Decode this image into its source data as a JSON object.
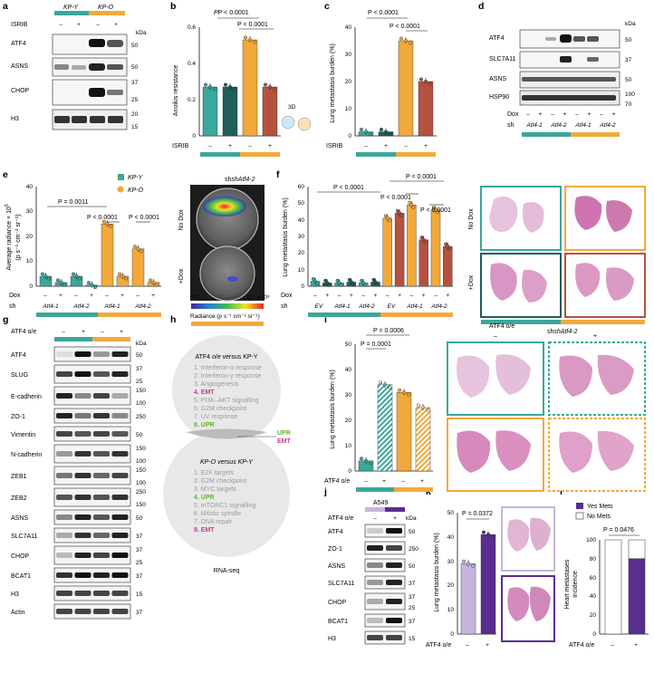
{
  "colors": {
    "teal": "#3aa89b",
    "teal_dark": "#1f5e5a",
    "orange": "#f2a93b",
    "red": "#b5513f",
    "purple": "#5a2d91",
    "lilac": "#c7b4de",
    "tissue": "#c85aa4"
  },
  "panel_labels": [
    "a",
    "b",
    "c",
    "d",
    "e",
    "f",
    "g",
    "h",
    "i",
    "j",
    "k",
    "l"
  ],
  "a": {
    "groups": [
      "KP-Y",
      "KP-O"
    ],
    "treatment": "ISRIB",
    "signs": [
      "–",
      "+",
      "–",
      "+"
    ],
    "kda": "kDa",
    "blots": [
      {
        "name": "ATF4",
        "markers": [
          "50"
        ]
      },
      {
        "name": "ASNS",
        "markers": [
          "50"
        ]
      },
      {
        "name": "CHOP",
        "markers": [
          "37",
          "25"
        ]
      },
      {
        "name": "H3",
        "markers": [
          "20",
          "15"
        ]
      }
    ]
  },
  "b": {
    "ylabel": "Anoikis resistance",
    "yticks": [
      "0",
      "0.2",
      "0.4",
      "0.6"
    ],
    "xrow_label": "ISRIB",
    "signs": [
      "–",
      "+",
      "–",
      "+"
    ],
    "p1": "P < 0.0001",
    "p2": "P < 0.0001",
    "inset": "3D",
    "chart_data": {
      "type": "bar",
      "values": [
        0.27,
        0.27,
        0.53,
        0.27
      ],
      "ylim": [
        0,
        0.6
      ]
    }
  },
  "c": {
    "ylabel": "Lung metastasis burden (%)",
    "yticks": [
      "0",
      "10",
      "20",
      "30",
      "40"
    ],
    "xrow_label": "ISRIB",
    "signs": [
      "–",
      "+",
      "–",
      "+"
    ],
    "p1": "P < 0.0001",
    "p2": "P < 0.0001",
    "chart_data": {
      "type": "bar",
      "values": [
        1.5,
        1.5,
        35,
        20
      ],
      "ylim": [
        0,
        40
      ]
    }
  },
  "d": {
    "kda": "kDa",
    "blots": [
      {
        "name": "ATF4",
        "markers": [
          "50"
        ]
      },
      {
        "name": "SLC7A11",
        "markers": [
          "37"
        ]
      },
      {
        "name": "ASNS",
        "markers": [
          "50"
        ]
      },
      {
        "name": "HSP90",
        "markers": [
          "100",
          "70"
        ]
      }
    ],
    "dox_label": "Dox",
    "signs": [
      "–",
      "+",
      "–",
      "+",
      "–",
      "+",
      "–",
      "+"
    ],
    "sh_label": "sh",
    "sh_items": [
      "Atf4-1",
      "Atf4-2",
      "Atf4-1",
      "Atf4-2"
    ]
  },
  "e": {
    "legend": [
      "KP-Y",
      "KP-O"
    ],
    "ylabel_line1": "Average radiance × 10",
    "ylabel_exp": "5",
    "ylabel_line2": "(p s⁻¹ cm⁻² sr⁻¹)",
    "yticks": [
      "0",
      "10",
      "20",
      "30",
      "40"
    ],
    "p1": "P = 0.0011",
    "p2": "P < 0.0001",
    "p3": "P < 0.0001",
    "dox_label": "Dox",
    "signs": [
      "–",
      "+",
      "–",
      "+",
      "–",
      "+",
      "–",
      "+"
    ],
    "sh_label": "sh",
    "sh_items": [
      "Atf4-1",
      "Atf4-2",
      "Atf4-1",
      "Atf4-2"
    ],
    "chart_data": {
      "type": "bar",
      "values": [
        4,
        1.5,
        4,
        0.5,
        25,
        4,
        15,
        1.5
      ],
      "ylim": [
        0,
        40
      ]
    },
    "image_title": "shAtf4-2",
    "no_dox": "No Dox",
    "plus_dox": "+Dox",
    "scale_min": "0.2",
    "scale_max": "1.0",
    "scale_exp": "×10⁸",
    "scale_label": "Radiance (p s⁻¹ cm⁻² sr⁻¹)"
  },
  "f": {
    "ylabel": "Lung metastasis burden (%)",
    "yticks": [
      "0",
      "10",
      "20",
      "30",
      "40",
      "50",
      "60"
    ],
    "p1": "P < 0.0001",
    "p2": "P < 0.0001",
    "p3": "P < 0.0001",
    "p4": "P < 0.0001",
    "dox_label": "Dox",
    "signs": [
      "–",
      "+",
      "–",
      "+",
      "–",
      "+",
      "–",
      "+",
      "–",
      "+",
      "–",
      "+"
    ],
    "sh_label": "sh",
    "sh_items": [
      "EV",
      "Atf4-1",
      "Atf4-2",
      "EV",
      "Atf4-1",
      "Atf4-2"
    ],
    "chart_data": {
      "type": "bar",
      "values": [
        3,
        2,
        2,
        2.5,
        2,
        2.5,
        41,
        44,
        49,
        28,
        46,
        24
      ],
      "ylim": [
        0,
        60
      ]
    },
    "no_dox": "No Dox",
    "plus_dox": "+Dox",
    "bottom_label": "shAtf4-2"
  },
  "g": {
    "o_e": "ATF4 o/e",
    "signs": [
      "–",
      "+",
      "–",
      "+"
    ],
    "kda": "kDa",
    "blots": [
      {
        "name": "ATF4",
        "markers": [
          "50"
        ]
      },
      {
        "name": "SLUG",
        "markers": [
          "37",
          "25"
        ]
      },
      {
        "name": "E-cadherin",
        "markers": [
          "150",
          "100"
        ]
      },
      {
        "name": "ZO-1",
        "markers": [
          "250"
        ]
      },
      {
        "name": "Vimentin",
        "markers": [
          "50"
        ]
      },
      {
        "name": "N-cadherin",
        "markers": [
          "150",
          "100"
        ]
      },
      {
        "name": "ZEB1",
        "markers": [
          "150",
          "100"
        ]
      },
      {
        "name": "ZEB2",
        "markers": [
          "250",
          "150"
        ]
      },
      {
        "name": "ASNS",
        "markers": [
          "50"
        ]
      },
      {
        "name": "SLC7A11",
        "markers": [
          "37"
        ]
      },
      {
        "name": "CHOP",
        "markers": [
          "37",
          "25"
        ]
      },
      {
        "name": "BCAT1",
        "markers": [
          "37"
        ]
      },
      {
        "name": "H3",
        "markers": [
          "15"
        ]
      },
      {
        "name": "Actin",
        "markers": [
          "37"
        ]
      }
    ]
  },
  "h": {
    "top_title": "ATF4 o/e versus KP-Y",
    "top_items": [
      "1. Interferon-α response",
      "2. Interferon-γ response",
      "3. Angiogenesis",
      "4. EMT",
      "5. PI3K–AKT signalling",
      "6. G2M checkpoint",
      "7. UV response",
      "8. UPR"
    ],
    "bottom_title": "KP-O versus KP-Y",
    "bottom_items": [
      "1. E2F targets",
      "2. G2M checkpoint",
      "3. MYC targets",
      "4. UPR",
      "5. mTORC1 signalling",
      "6. Mitotic spindle",
      "7. DNA repair",
      "8. EMT"
    ],
    "overlap": [
      "UPR",
      "EMT"
    ],
    "footer": "RNA-seq"
  },
  "i": {
    "ylabel": "Lung metastasis burden (%)",
    "yticks": [
      "0",
      "10",
      "20",
      "30",
      "40",
      "50"
    ],
    "p1": "P = 0.0006",
    "p2": "P = 0.0001",
    "xrow_label": "ATF4 o/e",
    "signs": [
      "–",
      "+",
      "–",
      "+"
    ],
    "chart_data": {
      "type": "bar",
      "values": [
        4,
        34,
        31,
        25
      ],
      "ylim": [
        0,
        50
      ]
    },
    "img_o_e": "ATF4 o/e",
    "img_minus": "–",
    "img_plus": "+"
  },
  "j": {
    "cell_line": "A549",
    "o_e": "ATF4 o/e",
    "signs": [
      "–",
      "+"
    ],
    "kda": "kDa",
    "blots": [
      {
        "name": "ATF4",
        "markers": [
          "50"
        ]
      },
      {
        "name": "ZO-1",
        "markers": [
          "250"
        ]
      },
      {
        "name": "ASNS",
        "markers": [
          "50"
        ]
      },
      {
        "name": "SLC7A11",
        "markers": [
          "37"
        ]
      },
      {
        "name": "CHOP",
        "markers": [
          "37",
          "25"
        ]
      },
      {
        "name": "BCAT1",
        "markers": [
          "37"
        ]
      },
      {
        "name": "H3",
        "markers": [
          "15"
        ]
      }
    ]
  },
  "k": {
    "ylabel": "Lung metastasis burden (%)",
    "yticks": [
      "0",
      "10",
      "20",
      "30",
      "40",
      "50"
    ],
    "p": "P = 0.0372",
    "xrow_label": "ATF4 o/e",
    "signs": [
      "–",
      "+"
    ],
    "chart_data": {
      "type": "bar",
      "values": [
        29,
        41
      ],
      "ylim": [
        0,
        50
      ]
    }
  },
  "l": {
    "ylabel_line1": "Heart metastases",
    "ylabel_line2": "incidence",
    "yticks": [
      "0",
      "20",
      "40",
      "60",
      "80",
      "100"
    ],
    "legend": [
      "Yes Mets",
      "No Mets"
    ],
    "p": "P = 0.0476",
    "xrow_label": "ATF4 o/e",
    "signs": [
      "–",
      "+"
    ],
    "chart_data": {
      "type": "bar",
      "series": [
        {
          "name": "Yes Mets",
          "values": [
            0,
            80
          ]
        },
        {
          "name": "No Mets",
          "values": [
            100,
            20
          ]
        }
      ],
      "ylim": [
        0,
        100
      ]
    }
  }
}
